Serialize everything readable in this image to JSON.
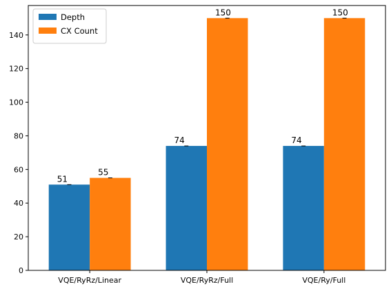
{
  "chart_data": {
    "type": "bar",
    "categories": [
      "VQE/RyRz/Linear",
      "VQE/RyRz/Full",
      "VQE/Ry/Full"
    ],
    "series": [
      {
        "name": "Depth",
        "values": [
          51,
          74,
          74
        ],
        "color": "#1f77b4"
      },
      {
        "name": "CX Count",
        "values": [
          55,
          150,
          150
        ],
        "color": "#ff7f0e"
      }
    ],
    "y_ticks": [
      0,
      20,
      40,
      60,
      80,
      100,
      120,
      140
    ],
    "ylim": [
      0,
      157.5
    ],
    "grid": false,
    "legend_position": "top-left",
    "error_bars": true
  }
}
